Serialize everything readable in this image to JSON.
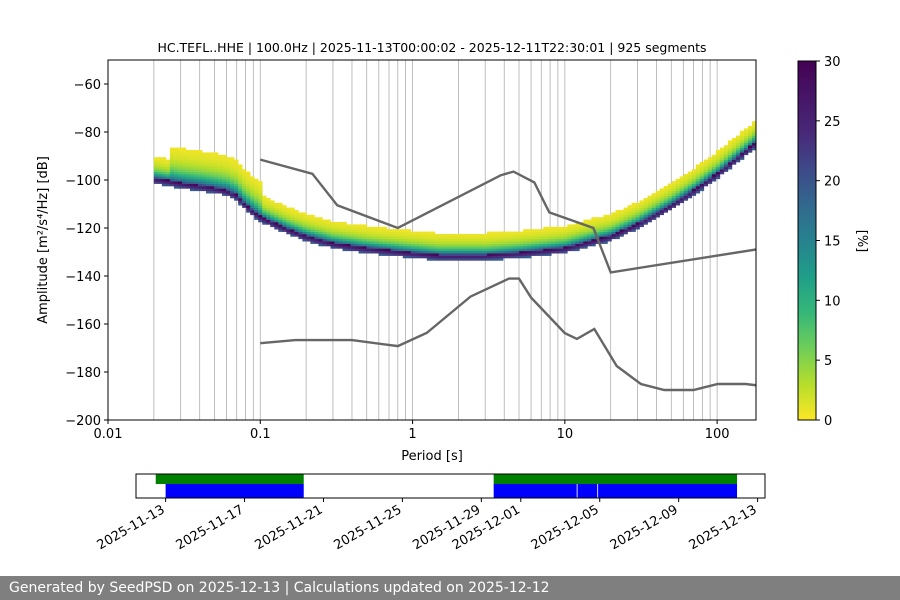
{
  "chart_data": {
    "type": "heatmap",
    "title": "HC.TEFL..HHE | 100.0Hz | 2025-11-13T00:00:02 - 2025-12-11T22:30:01 | 925 segments",
    "xlabel": "Period [s]",
    "ylabel": "Amplitude [m²/s⁴/Hz] [dB]",
    "x_scale": "log",
    "xlim": [
      0.01,
      180
    ],
    "ylim": [
      -200,
      -50
    ],
    "x_ticks": [
      0.01,
      0.1,
      1,
      10,
      100
    ],
    "x_tick_labels": [
      "0.01",
      "0.1",
      "1",
      "10",
      "100"
    ],
    "y_ticks": [
      -200,
      -180,
      -160,
      -140,
      -120,
      -100,
      -80,
      -60
    ],
    "y_tick_labels": [
      "−200",
      "−180",
      "−160",
      "−140",
      "−120",
      "−100",
      "−80",
      "−60"
    ],
    "vertical_gridlines_periods": [
      0.02,
      0.03,
      0.04,
      0.05,
      0.06,
      0.07,
      0.08,
      0.09,
      0.1,
      0.2,
      0.3,
      0.4,
      0.5,
      0.6,
      0.7,
      0.8,
      0.9,
      1,
      2,
      3,
      4,
      5,
      6,
      7,
      8,
      9,
      10,
      20,
      30,
      40,
      50,
      60,
      70,
      80,
      90,
      100
    ],
    "psd_mode_curve": {
      "period": [
        0.02,
        0.025,
        0.03,
        0.04,
        0.05,
        0.06,
        0.07,
        0.08,
        0.1,
        0.15,
        0.2,
        0.3,
        0.5,
        0.7,
        1,
        1.5,
        2,
        3,
        5,
        7,
        10,
        15,
        20,
        30,
        50,
        70,
        100,
        150,
        180
      ],
      "amplitude_db": [
        -99,
        -100,
        -101,
        -102,
        -103,
        -104,
        -106,
        -110,
        -115,
        -120,
        -123,
        -126,
        -128,
        -129,
        -130,
        -131,
        -131,
        -131,
        -130,
        -129,
        -128,
        -125,
        -123,
        -118,
        -110,
        -104,
        -97,
        -88,
        -84
      ]
    },
    "psd_spread_db": 12,
    "colorbar": {
      "label": "[%]",
      "min": 0,
      "max": 30,
      "ticks": [
        0,
        5,
        10,
        15,
        20,
        25,
        30
      ],
      "colormap": "viridis_r"
    },
    "nhnm": {
      "label": "",
      "period": [
        0.1,
        0.22,
        0.32,
        0.8,
        3.8,
        4.6,
        6.3,
        7.9,
        15.4,
        20.0,
        354.8
      ],
      "amplitude_db": [
        -91.5,
        -97.4,
        -110.5,
        -120.0,
        -98.0,
        -96.5,
        -101.0,
        -113.5,
        -120.0,
        -138.5,
        -126.0
      ]
    },
    "nlnm": {
      "label": "",
      "period": [
        0.1,
        0.17,
        0.4,
        0.8,
        1.24,
        2.4,
        4.3,
        5.0,
        6.0,
        10.0,
        12.0,
        15.6,
        21.9,
        31.6,
        45.0,
        70.0,
        101.0,
        154.0,
        328.0
      ],
      "amplitude_db": [
        -168.0,
        -166.7,
        -166.7,
        -169.2,
        -163.7,
        -148.6,
        -141.1,
        -141.1,
        -149.0,
        -163.8,
        -166.2,
        -162.1,
        -177.5,
        -185.0,
        -187.5,
        -187.5,
        -185.0,
        -185.0,
        -187.5
      ]
    },
    "availability": {
      "date_ticks": [
        "2025-11-13",
        "2025-11-17",
        "2025-11-21",
        "2025-11-25",
        "2025-11-29",
        "2025-12-01",
        "2025-12-05",
        "2025-12-09",
        "2025-12-13"
      ],
      "date_range": [
        "2025-11-11T12:00",
        "2025-12-13T09:00"
      ],
      "green_segments": [
        [
          "2025-11-12T12:00",
          "2025-11-20T00:00"
        ],
        [
          "2025-11-29T15:00",
          "2025-12-11T23:00"
        ]
      ],
      "blue_segments": [
        [
          "2025-11-13T00:00",
          "2025-11-20T00:00"
        ],
        [
          "2025-11-29T15:00",
          "2025-12-03T20:00"
        ],
        [
          "2025-12-03T21:00",
          "2025-12-04T21:00"
        ],
        [
          "2025-12-04T22:00",
          "2025-12-11T23:00"
        ]
      ],
      "green_color": "#008000",
      "blue_color": "#0000ff"
    }
  },
  "footer": {
    "text": "Generated by SeedPSD on 2025-12-13 | Calculations updated on 2025-12-12"
  }
}
